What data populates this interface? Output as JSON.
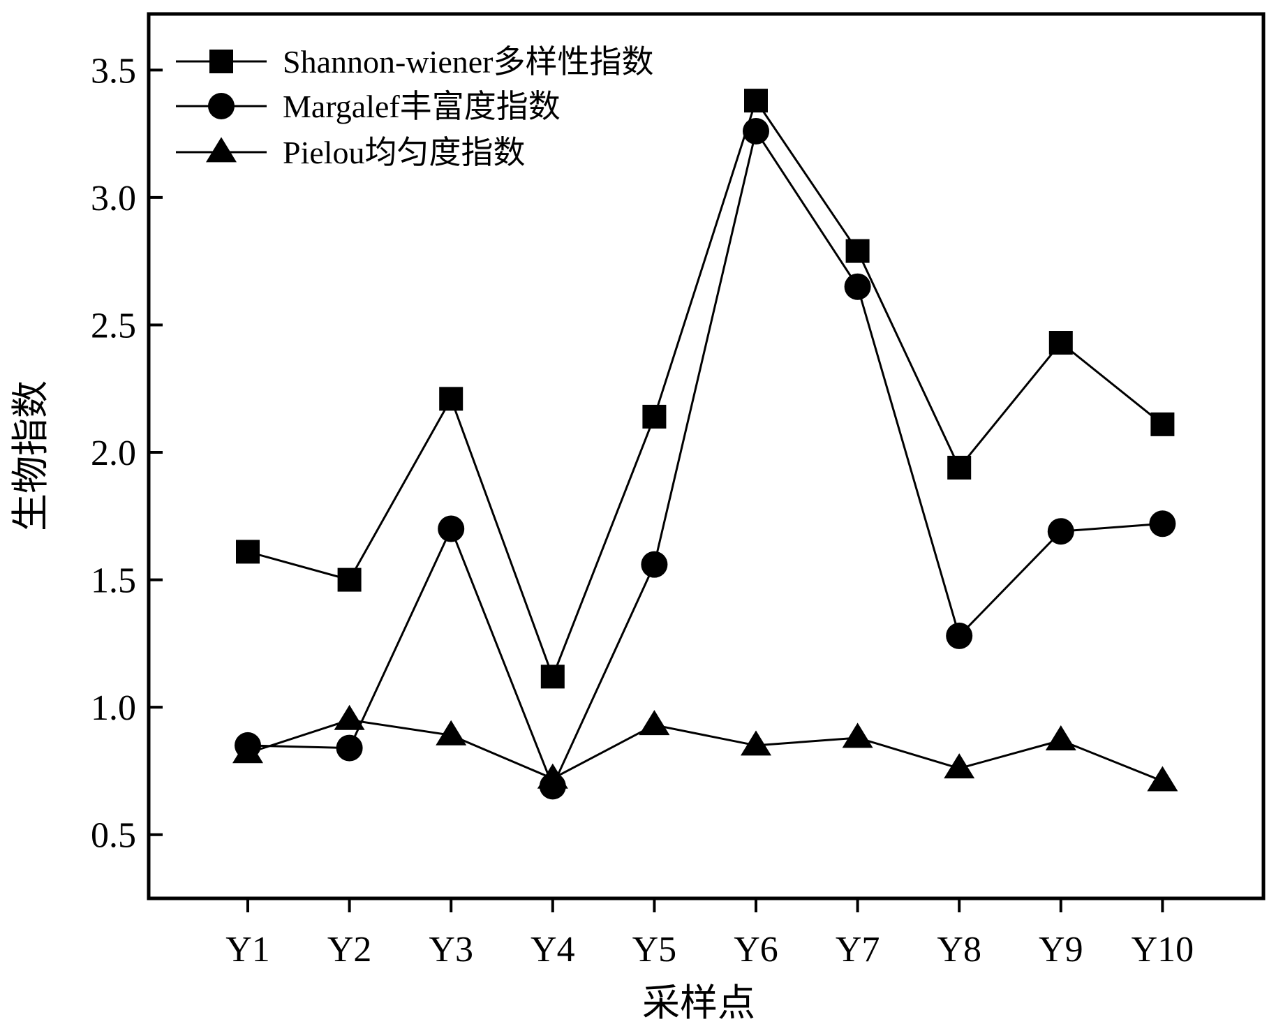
{
  "chart_data": {
    "type": "line",
    "title": "",
    "xlabel": "采样点",
    "ylabel": "生物指数",
    "categories": [
      "Y1",
      "Y2",
      "Y3",
      "Y4",
      "Y5",
      "Y6",
      "Y7",
      "Y8",
      "Y9",
      "Y10"
    ],
    "ylim": [
      0.25,
      3.72
    ],
    "yticks": [
      0.5,
      1.0,
      1.5,
      2.0,
      2.5,
      3.0,
      3.5
    ],
    "ytick_labels": [
      "0.5",
      "1.0",
      "1.5",
      "2.0",
      "2.5",
      "3.0",
      "3.5"
    ],
    "grid": false,
    "legend_position": "top-left",
    "series": [
      {
        "name": "Shannon-wiener多样性指数",
        "marker": "square",
        "color": "#000000",
        "values": [
          1.61,
          1.5,
          2.21,
          1.12,
          2.14,
          3.38,
          2.79,
          1.94,
          2.43,
          2.11
        ]
      },
      {
        "name": "Margalef丰富度指数",
        "marker": "circle",
        "color": "#000000",
        "values": [
          0.85,
          0.84,
          1.7,
          0.69,
          1.56,
          3.26,
          2.65,
          1.28,
          1.69,
          1.72
        ]
      },
      {
        "name": "Pielou均匀度指数",
        "marker": "triangle",
        "color": "#000000",
        "values": [
          0.82,
          0.95,
          0.89,
          0.72,
          0.93,
          0.85,
          0.88,
          0.76,
          0.87,
          0.71
        ]
      }
    ]
  }
}
